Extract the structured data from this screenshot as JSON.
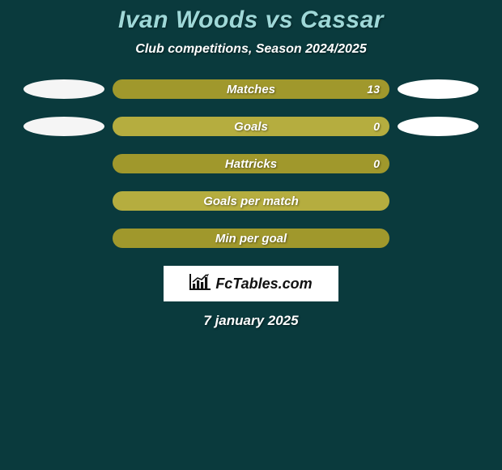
{
  "colors": {
    "background": "#0a3a3d",
    "title": "#9fd8d8",
    "bar_dark": "#a0982c",
    "bar_light": "#b5ad3f",
    "ellipse_left": "#f5f5f5",
    "ellipse_right": "#ffffff"
  },
  "title": "Ivan Woods vs Cassar",
  "subtitle": "Club competitions, Season 2024/2025",
  "rows": [
    {
      "label": "Matches",
      "value": "13",
      "show_value": true,
      "show_ellipses": true
    },
    {
      "label": "Goals",
      "value": "0",
      "show_value": true,
      "show_ellipses": true
    },
    {
      "label": "Hattricks",
      "value": "0",
      "show_value": true,
      "show_ellipses": false
    },
    {
      "label": "Goals per match",
      "value": "",
      "show_value": false,
      "show_ellipses": false
    },
    {
      "label": "Min per goal",
      "value": "",
      "show_value": false,
      "show_ellipses": false
    }
  ],
  "logo_text": "FcTables.com",
  "date": "7 january 2025"
}
